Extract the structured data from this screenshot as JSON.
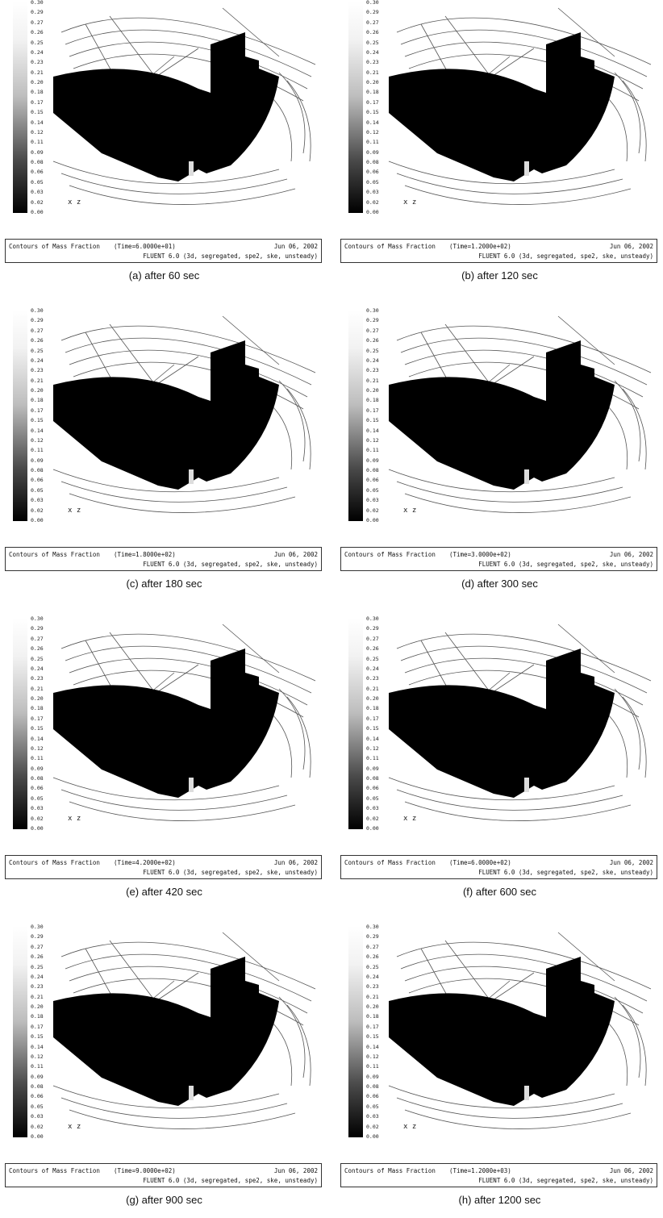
{
  "figure": {
    "scale_ticks": [
      "0.30",
      "0.29",
      "0.27",
      "0.26",
      "0.25",
      "0.24",
      "0.23",
      "0.21",
      "0.20",
      "0.18",
      "0.17",
      "0.15",
      "0.14",
      "0.12",
      "0.11",
      "0.09",
      "0.08",
      "0.06",
      "0.05",
      "0.03",
      "0.02",
      "0.00"
    ],
    "axis_label": "x z",
    "panels": [
      {
        "caption": "(a) after 60 sec",
        "title": "Contours of Mass Fraction",
        "time": "(Time=6.0000e+01)",
        "date": "Jun 06, 2002",
        "solver": "FLUENT 6.0 (3d, segregated, spe2, ske, unsteady)"
      },
      {
        "caption": "(b) after 120 sec",
        "title": "Contours of Mass Fraction",
        "time": "(Time=1.2000e+02)",
        "date": "Jun 06, 2002",
        "solver": "FLUENT 6.0 (3d, segregated, spe2, ske, unsteady)"
      },
      {
        "caption": "(c) after 180 sec",
        "title": "Contours of Mass Fraction",
        "time": "(Time=1.8000e+02)",
        "date": "Jun 06, 2002",
        "solver": "FLUENT 6.0 (3d, segregated, spe2, ske, unsteady)"
      },
      {
        "caption": "(d) after 300 sec",
        "title": "Contours of Mass Fraction",
        "time": "(Time=3.0000e+02)",
        "date": "Jun 06, 2002",
        "solver": "FLUENT 6.0 (3d, segregated, spe2, ske, unsteady)"
      },
      {
        "caption": "(e) after 420 sec",
        "title": "Contours of Mass Fraction",
        "time": "(Time=4.2000e+02)",
        "date": "Jun 06, 2002",
        "solver": "FLUENT 6.0 (3d, segregated, spe2, ske, unsteady)"
      },
      {
        "caption": "(f) after 600 sec",
        "title": "Contours of Mass Fraction",
        "time": "(Time=6.0000e+02)",
        "date": "Jun 06, 2002",
        "solver": "FLUENT 6.0 (3d, segregated, spe2, ske, unsteady)"
      },
      {
        "caption": "(g) after 900 sec",
        "title": "Contours of Mass Fraction",
        "time": "(Time=9.0000e+02)",
        "date": "Jun 06, 2002",
        "solver": "FLUENT 6.0 (3d, segregated, spe2, ske, unsteady)"
      },
      {
        "caption": "(h) after 1200 sec",
        "title": "Contours of Mass Fraction",
        "time": "(Time=1.2000e+03)",
        "date": "Jun 06, 2002",
        "solver": "FLUENT 6.0 (3d, segregated, spe2, ske, unsteady)"
      }
    ]
  }
}
